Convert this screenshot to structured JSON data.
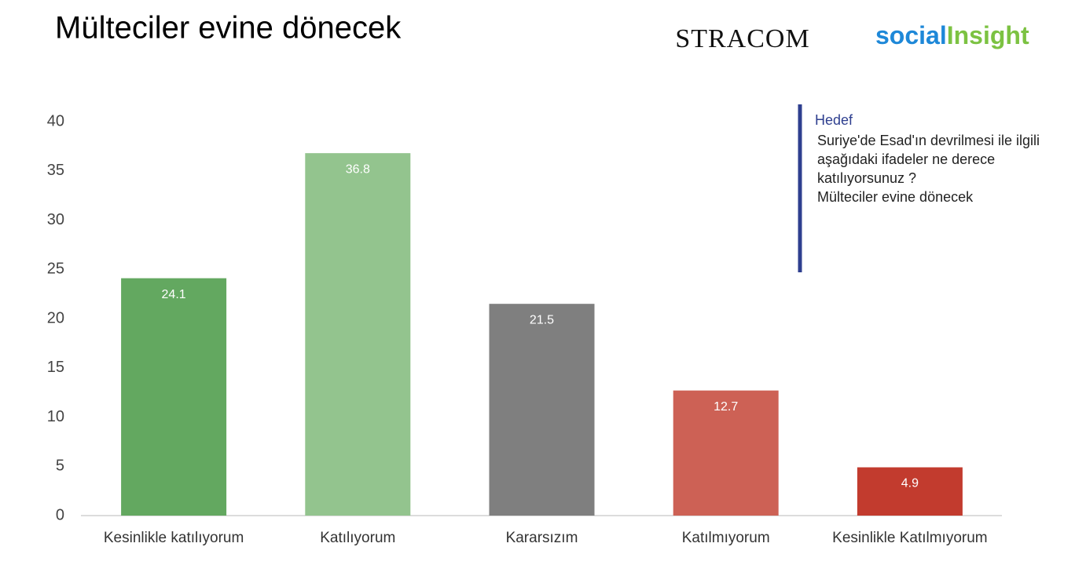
{
  "chart_data": {
    "type": "bar",
    "title": "Mülteciler evine dönecek",
    "logos": {
      "stracom": "STRACOM",
      "social": "social",
      "insight": "Insight"
    },
    "note": {
      "title": "Hedef",
      "lines": [
        "Suriye'de Esad'ın devrilmesi ile ilgili",
        "aşağıdaki ifadeler ne derece",
        "katılıyorsunuz ?",
        "Mülteciler evine dönecek"
      ]
    },
    "categories": [
      "Kesinlikle katılıyorum",
      "Katılıyorum",
      "Kararsızım",
      "Katılmıyorum",
      "Kesinlikle Katılmıyorum"
    ],
    "values": [
      24.1,
      36.8,
      21.5,
      12.7,
      4.9
    ],
    "colors": [
      "#63a860",
      "#93c48e",
      "#7f7f7f",
      "#cd6155",
      "#c23b2e"
    ],
    "ylim": [
      0,
      40
    ],
    "yticks": [
      0,
      5,
      10,
      15,
      20,
      25,
      30,
      35,
      40
    ],
    "grid": false
  }
}
